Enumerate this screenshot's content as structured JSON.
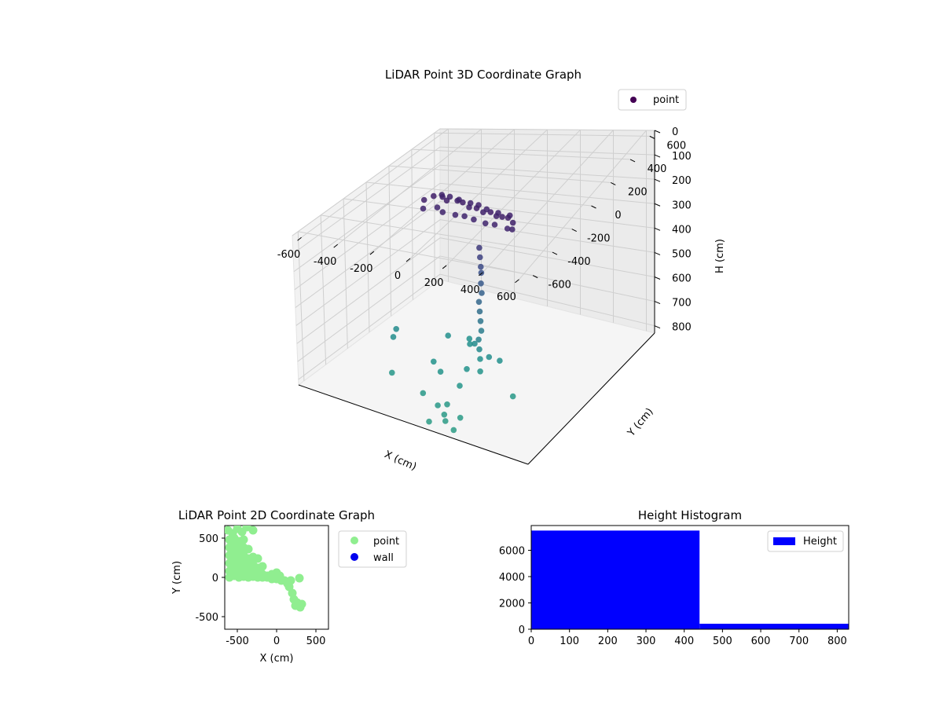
{
  "charts": {
    "scatter3d": {
      "title": "LiDAR Point 3D Coordinate Graph",
      "xlabel": "X (cm)",
      "ylabel": "Y (cm)",
      "zlabel": "H (cm)",
      "x_ticks": [
        "-600",
        "-400",
        "-200",
        "0",
        "200",
        "400",
        "600"
      ],
      "y_ticks": [
        "600",
        "400",
        "200",
        "0",
        "-200",
        "-400",
        "-600"
      ],
      "z_ticks": [
        "0",
        "100",
        "200",
        "300",
        "400",
        "500",
        "600",
        "700",
        "800"
      ],
      "legend": "point"
    },
    "scatter2d": {
      "title": "LiDAR Point 2D Coordinate Graph",
      "xlabel": "X (cm)",
      "ylabel": "Y (cm)",
      "x_ticks": [
        "-500",
        "0",
        "500"
      ],
      "y_ticks": [
        "500",
        "0",
        "-500"
      ],
      "legend": [
        "point",
        "wall"
      ]
    },
    "histogram": {
      "title": "Height Histogram",
      "x_ticks": [
        "0",
        "100",
        "200",
        "300",
        "400",
        "500",
        "600",
        "700",
        "800"
      ],
      "y_ticks": [
        "0",
        "2000",
        "4000",
        "6000"
      ],
      "legend": "Height"
    }
  },
  "chart_data": [
    {
      "type": "scatter",
      "projection": "3d",
      "title": "LiDAR Point 3D Coordinate Graph",
      "xlabel": "X (cm)",
      "ylabel": "Y (cm)",
      "zlabel": "H (cm)",
      "xlim": [
        -650,
        650
      ],
      "ylim": [
        -650,
        650
      ],
      "zlim": [
        0,
        830
      ],
      "z_inverted": true,
      "legend": "top-right",
      "colormap": "viridis",
      "series": [
        {
          "name": "point",
          "points": [
            [
              -390,
              200,
              140
            ],
            [
              -420,
              160,
              145
            ],
            [
              -350,
              220,
              150
            ],
            [
              -300,
              180,
              145
            ],
            [
              -250,
              200,
              150
            ],
            [
              -200,
              170,
              140
            ],
            [
              -150,
              150,
              150
            ],
            [
              -100,
              140,
              145
            ],
            [
              -50,
              120,
              150
            ],
            [
              0,
              110,
              140
            ],
            [
              40,
              100,
              150
            ],
            [
              80,
              90,
              145
            ],
            [
              120,
              80,
              140
            ],
            [
              160,
              60,
              150
            ],
            [
              -380,
              260,
              160
            ],
            [
              -320,
              240,
              155
            ],
            [
              -260,
              230,
              160
            ],
            [
              -180,
              210,
              160
            ],
            [
              -120,
              190,
              155
            ],
            [
              -60,
              170,
              160
            ],
            [
              20,
              150,
              160
            ],
            [
              100,
              130,
              155
            ],
            [
              -400,
              120,
              170
            ],
            [
              -330,
              140,
              165
            ],
            [
              -280,
              110,
              170
            ],
            [
              -200,
              100,
              170
            ],
            [
              -140,
              90,
              165
            ],
            [
              -80,
              80,
              170
            ],
            [
              0,
              60,
              170
            ],
            [
              60,
              50,
              165
            ],
            [
              140,
              40,
              170
            ],
            [
              180,
              20,
              160
            ],
            [
              0,
              0,
              260
            ],
            [
              10,
              -10,
              300
            ],
            [
              20,
              -20,
              340
            ],
            [
              10,
              0,
              380
            ],
            [
              20,
              -20,
              420
            ],
            [
              30,
              -30,
              460
            ],
            [
              20,
              -40,
              500
            ],
            [
              30,
              -50,
              540
            ],
            [
              40,
              -60,
              580
            ],
            [
              50,
              -70,
              620
            ],
            [
              40,
              -80,
              660
            ],
            [
              50,
              -90,
              700
            ],
            [
              60,
              -100,
              740
            ],
            [
              -20,
              -20,
              720
            ],
            [
              100,
              -80,
              730
            ],
            [
              -60,
              0,
              740
            ],
            [
              150,
              -60,
              745
            ],
            [
              -440,
              -80,
              720
            ],
            [
              -420,
              -140,
              730
            ],
            [
              -200,
              20,
              740
            ],
            [
              -100,
              60,
              750
            ],
            [
              -150,
              -200,
              760
            ],
            [
              -80,
              -250,
              770
            ],
            [
              30,
              -180,
              760
            ],
            [
              90,
              -150,
              770
            ],
            [
              60,
              -300,
              780
            ],
            [
              -300,
              -350,
              790
            ],
            [
              -80,
              -420,
              800
            ],
            [
              40,
              -480,
              800
            ],
            [
              70,
              -440,
              805
            ],
            [
              320,
              -220,
              800
            ],
            [
              100,
              -520,
              810
            ],
            [
              130,
              -560,
              815
            ],
            [
              180,
              -500,
              812
            ],
            [
              60,
              -600,
              820
            ],
            [
              200,
              -600,
              820
            ]
          ]
        }
      ]
    },
    {
      "type": "scatter",
      "title": "LiDAR Point 2D Coordinate Graph",
      "xlabel": "X (cm)",
      "ylabel": "Y (cm)",
      "xlim": [
        -660,
        660
      ],
      "ylim": [
        -660,
        660
      ],
      "legend": "right-outside",
      "series": [
        {
          "name": "point",
          "color": "#90ee90",
          "points": [
            [
              -620,
              600
            ],
            [
              -560,
              560
            ],
            [
              -500,
              620
            ],
            [
              -440,
              580
            ],
            [
              -380,
              640
            ],
            [
              -300,
              600
            ],
            [
              -600,
              480
            ],
            [
              -540,
              500
            ],
            [
              -480,
              460
            ],
            [
              -420,
              480
            ],
            [
              -600,
              380
            ],
            [
              -540,
              400
            ],
            [
              -480,
              360
            ],
            [
              -420,
              380
            ],
            [
              -360,
              360
            ],
            [
              -600,
              280
            ],
            [
              -540,
              300
            ],
            [
              -480,
              260
            ],
            [
              -420,
              280
            ],
            [
              -360,
              240
            ],
            [
              -300,
              260
            ],
            [
              -240,
              240
            ],
            [
              -600,
              180
            ],
            [
              -540,
              200
            ],
            [
              -480,
              160
            ],
            [
              -420,
              180
            ],
            [
              -360,
              140
            ],
            [
              -300,
              160
            ],
            [
              -240,
              120
            ],
            [
              -180,
              140
            ],
            [
              -600,
              80
            ],
            [
              -540,
              100
            ],
            [
              -480,
              60
            ],
            [
              -420,
              80
            ],
            [
              -360,
              40
            ],
            [
              -300,
              60
            ],
            [
              -240,
              20
            ],
            [
              -180,
              40
            ],
            [
              -120,
              20
            ],
            [
              -600,
              0
            ],
            [
              -540,
              20
            ],
            [
              -480,
              0
            ],
            [
              -420,
              10
            ],
            [
              -360,
              0
            ],
            [
              -300,
              10
            ],
            [
              -240,
              0
            ],
            [
              -180,
              0
            ],
            [
              -120,
              0
            ],
            [
              -60,
              -20
            ],
            [
              0,
              -20
            ],
            [
              60,
              -40
            ],
            [
              -60,
              40
            ],
            [
              0,
              60
            ],
            [
              40,
              20
            ],
            [
              100,
              -40
            ],
            [
              140,
              -80
            ],
            [
              180,
              -40
            ],
            [
              160,
              -120
            ],
            [
              200,
              -200
            ],
            [
              220,
              -280
            ],
            [
              260,
              -320
            ],
            [
              300,
              -380
            ],
            [
              240,
              -360
            ],
            [
              320,
              -340
            ],
            [
              290,
              -10
            ]
          ]
        },
        {
          "name": "wall",
          "color": "#0000ee",
          "points": []
        }
      ]
    },
    {
      "type": "bar",
      "histogram": true,
      "title": "Height Histogram",
      "legend": "top-right",
      "series": [
        {
          "name": "Height",
          "color": "#0000ff",
          "bins": [
            [
              0,
              440,
              7500
            ],
            [
              440,
              830,
              420
            ]
          ]
        }
      ],
      "xlim": [
        0,
        830
      ],
      "ylim": [
        0,
        7880
      ]
    }
  ]
}
